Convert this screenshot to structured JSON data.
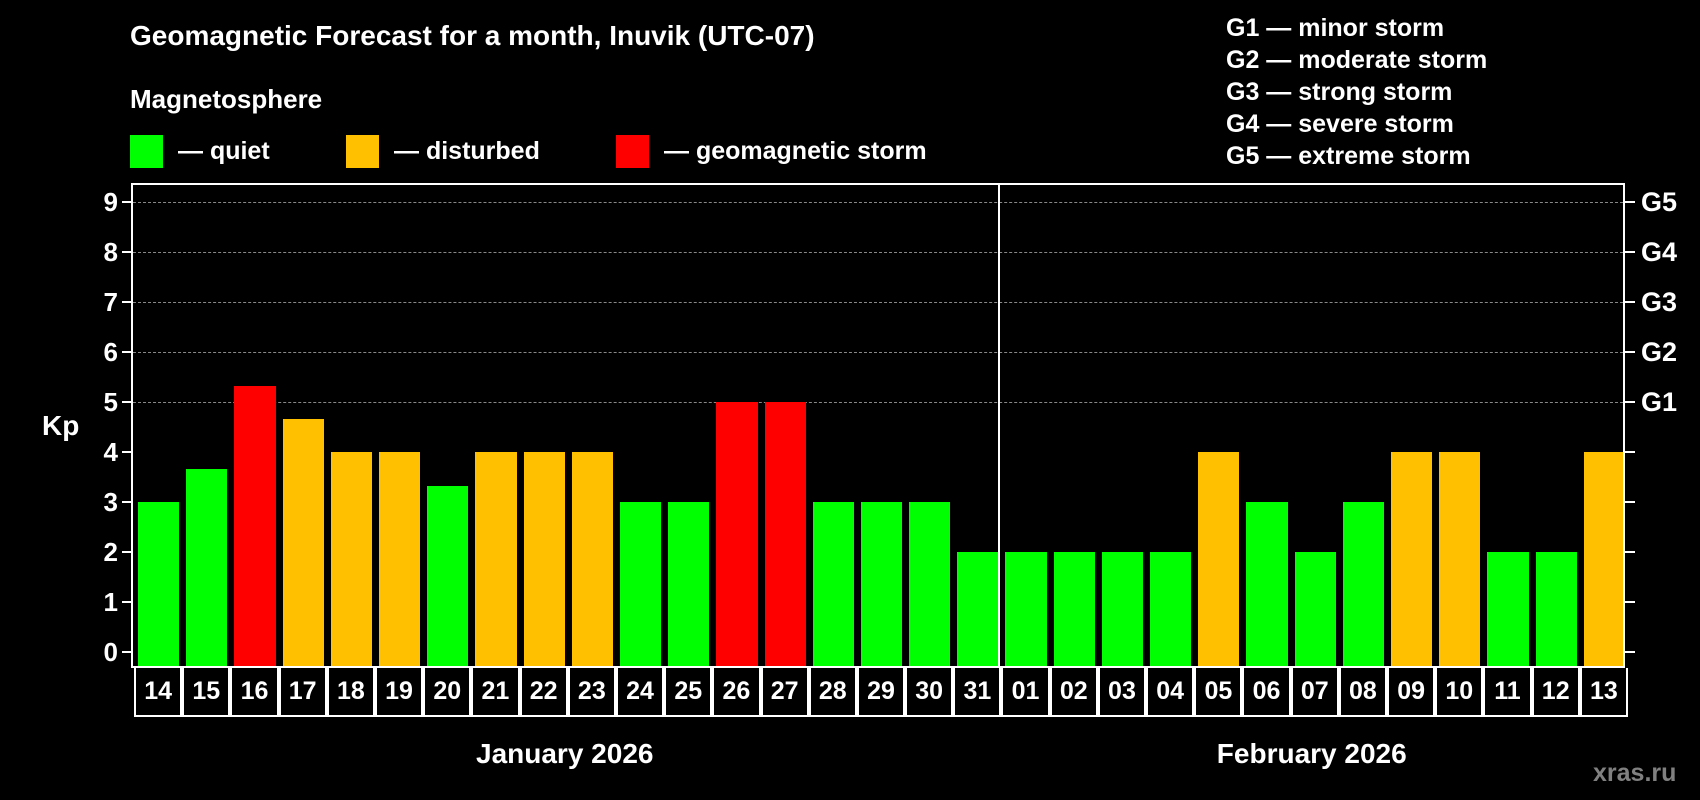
{
  "header": {
    "title": "Geomagnetic Forecast for a month, Inuvik (UTC-07)",
    "subtitle": "Magnetosphere"
  },
  "legend": [
    {
      "label": "— quiet",
      "color": "#00ff00",
      "icon": "green-square"
    },
    {
      "label": "— disturbed",
      "color": "#ffc000",
      "icon": "orange-square"
    },
    {
      "label": "— geomagnetic storm",
      "color": "#ff0000",
      "icon": "red-square"
    }
  ],
  "storm_scale": [
    "G1 — minor storm",
    "G2 — moderate storm",
    "G3 — strong storm",
    "G4 — severe storm",
    "G5 — extreme storm"
  ],
  "watermark": "xras.ru",
  "colors": {
    "quiet": "#00ff00",
    "disturbed": "#ffc000",
    "storm": "#ff0000",
    "background": "#000000",
    "grid": "#888888"
  },
  "chart_data": {
    "type": "bar",
    "title": "Geomagnetic Forecast for a month, Inuvik (UTC-07)",
    "subtitle": "Magnetosphere",
    "ylabel": "Kp",
    "xlabel": "",
    "ylim": [
      0,
      9
    ],
    "yticks": [
      0,
      1,
      2,
      3,
      4,
      5,
      6,
      7,
      8,
      9
    ],
    "right_axis_labels": [
      {
        "value": 5,
        "label": "G1"
      },
      {
        "value": 6,
        "label": "G2"
      },
      {
        "value": 7,
        "label": "G3"
      },
      {
        "value": 8,
        "label": "G4"
      },
      {
        "value": 9,
        "label": "G5"
      }
    ],
    "grid": "dashed horizontal at Kp 5-9",
    "legend_position": "top",
    "months": [
      {
        "label": "January 2026",
        "count": 18
      },
      {
        "label": "February 2026",
        "count": 13
      }
    ],
    "categories": [
      "14",
      "15",
      "16",
      "17",
      "18",
      "19",
      "20",
      "21",
      "22",
      "23",
      "24",
      "25",
      "26",
      "27",
      "28",
      "29",
      "30",
      "31",
      "01",
      "02",
      "03",
      "04",
      "05",
      "06",
      "07",
      "08",
      "09",
      "10",
      "11",
      "12",
      "13"
    ],
    "values": [
      3,
      3.67,
      5.33,
      4.67,
      4,
      4,
      3.33,
      4,
      4,
      4,
      3,
      3,
      5,
      5,
      3,
      3,
      3,
      2,
      2,
      2,
      2,
      2,
      4,
      3,
      2,
      3,
      4,
      4,
      2,
      2,
      4
    ],
    "levels": [
      "quiet",
      "quiet",
      "storm",
      "disturbed",
      "disturbed",
      "disturbed",
      "quiet",
      "disturbed",
      "disturbed",
      "disturbed",
      "quiet",
      "quiet",
      "storm",
      "storm",
      "quiet",
      "quiet",
      "quiet",
      "quiet",
      "quiet",
      "quiet",
      "quiet",
      "quiet",
      "disturbed",
      "quiet",
      "quiet",
      "quiet",
      "disturbed",
      "disturbed",
      "quiet",
      "quiet",
      "disturbed"
    ]
  }
}
